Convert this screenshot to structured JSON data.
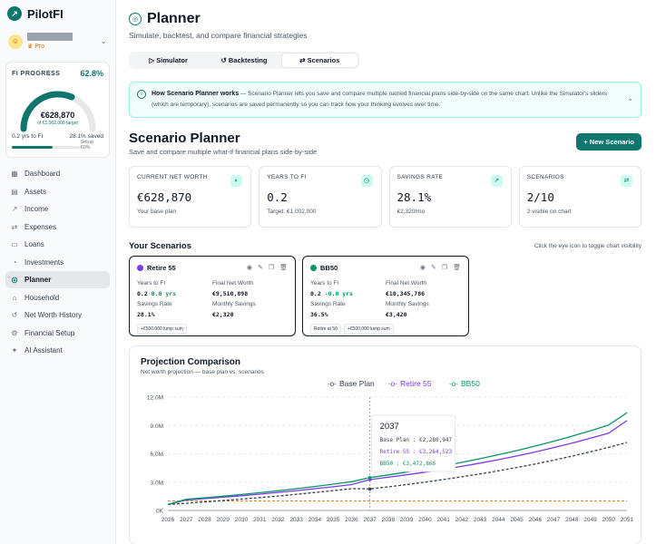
{
  "app": {
    "name": "PilotFI"
  },
  "user": {
    "badge": "Pro"
  },
  "fi_progress": {
    "title": "FI PROGRESS",
    "percent": "62.8%",
    "progress": 0.628,
    "value": "€628,870",
    "target": "of €1,002,000 target",
    "yrs": "0.2 yrs to FI",
    "saved": "28.1% saved",
    "setup_label": "Setup 60%",
    "setup_progress": 0.6
  },
  "nav": [
    {
      "label": "Dashboard",
      "icon": "dashboard-icon",
      "glyph": "▦"
    },
    {
      "label": "Assets",
      "icon": "assets-icon",
      "glyph": "▤"
    },
    {
      "label": "Income",
      "icon": "income-icon",
      "glyph": "↗"
    },
    {
      "label": "Expenses",
      "icon": "expenses-icon",
      "glyph": "⇄"
    },
    {
      "label": "Loans",
      "icon": "loans-icon",
      "glyph": "▭"
    },
    {
      "label": "Investments",
      "icon": "investments-icon",
      "glyph": "◔"
    },
    {
      "label": "Planner",
      "icon": "compass-icon",
      "glyph": "◎"
    },
    {
      "label": "Household",
      "icon": "household-icon",
      "glyph": "⌂"
    },
    {
      "label": "Net Worth History",
      "icon": "history-icon",
      "glyph": "↺"
    },
    {
      "label": "Financial Setup",
      "icon": "gear-icon",
      "glyph": "⚙"
    },
    {
      "label": "AI Assistant",
      "icon": "sparkle-icon",
      "glyph": "✦"
    }
  ],
  "page": {
    "title": "Planner",
    "subtitle": "Simulate, backtest, and compare financial strategies"
  },
  "tabs": [
    {
      "label": "Simulator",
      "glyph": "▷"
    },
    {
      "label": "Backtesting",
      "glyph": "↺"
    },
    {
      "label": "Scenarios",
      "glyph": "⇄"
    }
  ],
  "info": {
    "title": "How Scenario Planner works",
    "text": " — Scenario Planner lets you save and compare multiple named financial plans side-by-side on the same chart. Unlike the Simulator's sliders (which are temporary), scenarios are saved permanently so you can track how your thinking evolves over time."
  },
  "section": {
    "title": "Scenario Planner",
    "subtitle": "Save and compare multiple what-if financial plans side-by-side",
    "new_button": "+ New Scenario"
  },
  "stats": [
    {
      "label": "CURRENT NET WORTH",
      "value": "€628,870",
      "note": "Your base plan",
      "icon": "piggy-bank-icon",
      "glyph": "◐"
    },
    {
      "label": "YEARS TO FI",
      "value": "0.2",
      "note": "Target: €1,002,000",
      "icon": "clock-icon",
      "glyph": "◷"
    },
    {
      "label": "SAVINGS RATE",
      "value": "28.1%",
      "note": "€2,320/mo",
      "icon": "trend-up-icon",
      "glyph": "↗"
    },
    {
      "label": "SCENARIOS",
      "value": "2/10",
      "note": "2 visible on chart",
      "icon": "swap-icon",
      "glyph": "⇄"
    }
  ],
  "your_scenarios": {
    "title": "Your Scenarios",
    "hint": "Click the eye icon to toggle chart visibility"
  },
  "scenarios": [
    {
      "name": "Retire 55",
      "color": "#7c3aed",
      "years_label": "Years to FI",
      "years": "0.2",
      "delta": "0.0 yrs",
      "fnw_label": "Final Net Worth",
      "fnw": "€9,510,898",
      "sr_label": "Savings Rate",
      "sr": "28.1%",
      "ms_label": "Monthly Savings",
      "ms": "€2,320",
      "tags": [
        "+€500,000 lump sum"
      ]
    },
    {
      "name": "BB50",
      "color": "#059669",
      "years_label": "Years to FI",
      "years": "0.2",
      "delta": "-0.0 yrs",
      "fnw_label": "Final Net Worth",
      "fnw": "€10,345,786",
      "sr_label": "Savings Rate",
      "sr": "36.5%",
      "ms_label": "Monthly Savings",
      "ms": "€3,420",
      "tags": [
        "Retire at 50",
        "+€500,000 lump sum"
      ]
    }
  ],
  "chart_data": {
    "type": "line",
    "title": "Projection Comparison",
    "subtitle": "Net worth projection — base plan vs. scenarios",
    "x": [
      2026,
      2027,
      2028,
      2029,
      2030,
      2031,
      2032,
      2033,
      2034,
      2035,
      2036,
      2037,
      2038,
      2039,
      2040,
      2041,
      2042,
      2043,
      2044,
      2045,
      2046,
      2047,
      2048,
      2049,
      2050,
      2051
    ],
    "ylim": [
      0,
      12000000
    ],
    "yticks": [
      "0K",
      "3.0M",
      "6.0M",
      "9.0M",
      "12.0M"
    ],
    "ytick_values": [
      0,
      3000000,
      6000000,
      9000000,
      12000000
    ],
    "series": [
      {
        "name": "Base Plan",
        "color": "#374151",
        "dashed": true,
        "values": [
          629000,
          760000,
          900000,
          1050000,
          1200000,
          1360000,
          1530000,
          1710000,
          1900000,
          2100000,
          2300000,
          2281000,
          2500000,
          2740000,
          3000000,
          3270000,
          3560000,
          3870000,
          4200000,
          4550000,
          4920000,
          5320000,
          5750000,
          6200000,
          6680000,
          7200000
        ]
      },
      {
        "name": "Retire 55",
        "color": "#7c3aed",
        "dashed": false,
        "values": [
          629000,
          1100000,
          1250000,
          1400000,
          1560000,
          1730000,
          1910000,
          2100000,
          2300000,
          2510000,
          2740000,
          3265000,
          3510000,
          3770000,
          4050000,
          4350000,
          4670000,
          5010000,
          5380000,
          5770000,
          6190000,
          6640000,
          7120000,
          7640000,
          8180000,
          9511000
        ]
      },
      {
        "name": "BB50",
        "color": "#059669",
        "dashed": false,
        "values": [
          629000,
          1180000,
          1340000,
          1510000,
          1690000,
          1880000,
          2080000,
          2300000,
          2530000,
          2780000,
          3040000,
          3473000,
          3760000,
          4060000,
          4380000,
          4720000,
          5090000,
          5480000,
          5900000,
          6340000,
          6820000,
          7320000,
          7860000,
          8430000,
          9040000,
          10346000
        ]
      }
    ],
    "reference_line": {
      "value": 1002000,
      "color": "#d97706"
    },
    "tooltip": {
      "year": "2037",
      "rows": [
        {
          "text": "Base Plan : €2,280,947",
          "color": "#374151"
        },
        {
          "text": "Retire 55 : €3,264,523",
          "color": "#7c3aed"
        },
        {
          "text": "BB50 : €3,472,866",
          "color": "#059669"
        }
      ]
    }
  }
}
